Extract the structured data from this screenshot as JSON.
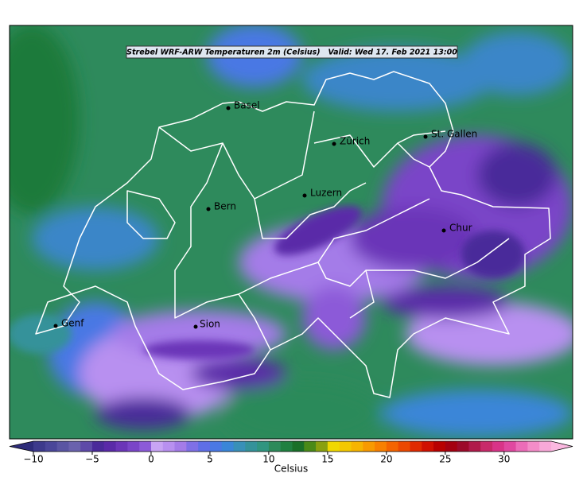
{
  "title": "Strebel WRF-ARW Temperaturen 2m (Celsius)   Valid: Wed 17. Feb 2021 13:00",
  "cities": [
    "Basel",
    "Zürich",
    "St. Gallen",
    "Luzern",
    "Bern",
    "Chur",
    "Genf",
    "Sion"
  ],
  "colorbar": {
    "label": "Celsius",
    "clim": [
      -10,
      34
    ],
    "ticks": [
      {
        "value": -10,
        "label": "−10"
      },
      {
        "value": -5,
        "label": "−5"
      },
      0,
      5,
      10,
      15,
      20,
      25,
      30
    ],
    "colors": [
      "#3d3a8c",
      "#4a4699",
      "#5a55a3",
      "#6a62ad",
      "#5e4aa8",
      "#4a2a9a",
      "#5a2aa8",
      "#6b35b8",
      "#7a45c8",
      "#8c5ad8",
      "#c8a4f4",
      "#b890f0",
      "#a47ce8",
      "#7f70e6",
      "#5f6ee6",
      "#4a78e4",
      "#3a86d8",
      "#3890b8",
      "#34929a",
      "#309580",
      "#2c8a5a",
      "#208040",
      "#1a7028",
      "#4a8a18",
      "#8aa010",
      "#f0d800",
      "#f4c800",
      "#f6b400",
      "#f89a00",
      "#f88000",
      "#f46400",
      "#ec4800",
      "#e02a00",
      "#d01000",
      "#b80000",
      "#a40010",
      "#9c0a2a",
      "#b01a4a",
      "#c82a6a",
      "#d83488",
      "#e048a0",
      "#ec6cb8",
      "#f48cc8",
      "#f8a8d8"
    ],
    "under_color": "#2e2c7a",
    "over_color": "#fbb8e0"
  }
}
